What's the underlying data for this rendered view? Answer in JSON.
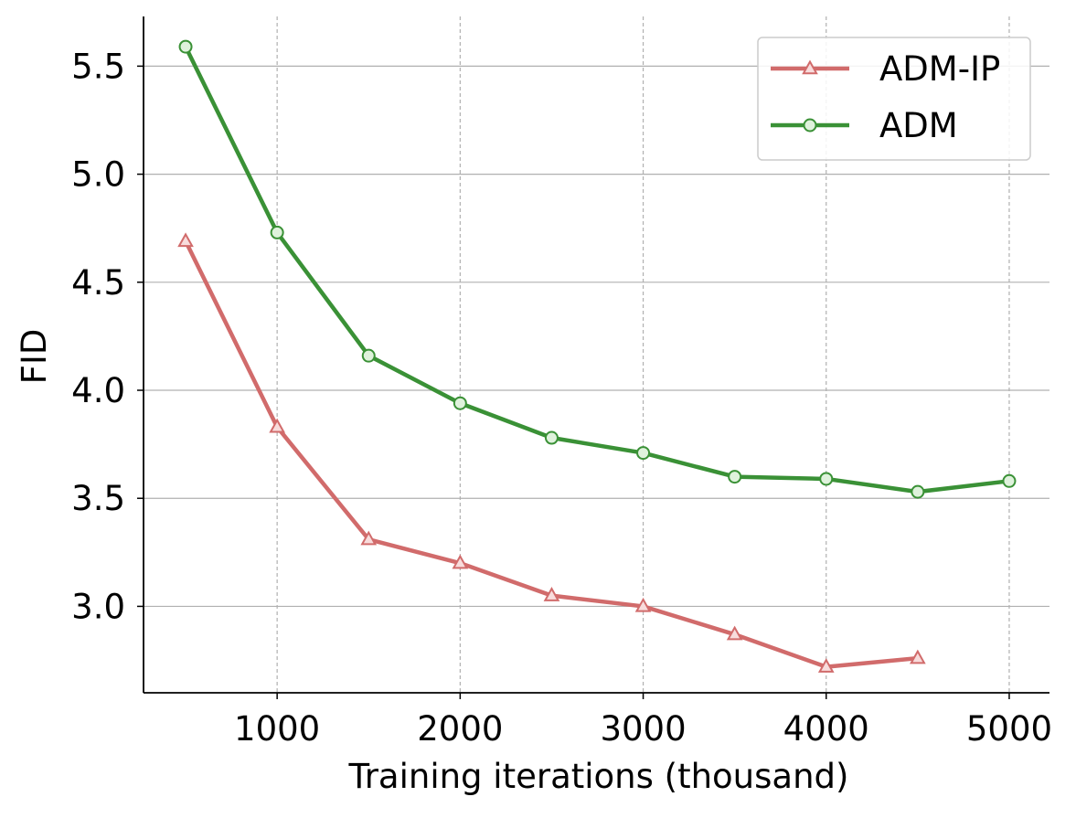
{
  "chart_data": {
    "type": "line",
    "title": "",
    "xlabel": "Training iterations (thousand)",
    "ylabel": "FID",
    "xlim": [
      270,
      5220
    ],
    "ylim": [
      2.6,
      5.73
    ],
    "x_ticks": [
      1000,
      2000,
      3000,
      4000,
      5000
    ],
    "x_tick_labels": [
      "1000",
      "2000",
      "3000",
      "4000",
      "5000"
    ],
    "y_ticks": [
      3.0,
      3.5,
      4.0,
      4.5,
      5.0,
      5.5
    ],
    "y_tick_labels": [
      "3.0",
      "3.5",
      "4.0",
      "4.5",
      "5.0",
      "5.5"
    ],
    "grid": {
      "x": "dashed",
      "y": "solid"
    },
    "legend_position": "top-right",
    "series": [
      {
        "name": "ADM-IP",
        "color": "#d16b6b",
        "marker": "triangle",
        "x": [
          500,
          1000,
          1500,
          2000,
          2500,
          3000,
          3500,
          4000,
          4500
        ],
        "values": [
          4.69,
          3.83,
          3.31,
          3.2,
          3.05,
          3.0,
          2.87,
          2.72,
          2.76
        ]
      },
      {
        "name": "ADM",
        "color": "#3a9136",
        "marker": "circle",
        "x": [
          500,
          1000,
          1500,
          2000,
          2500,
          3000,
          3500,
          4000,
          4500,
          5000
        ],
        "values": [
          5.59,
          4.73,
          4.16,
          3.94,
          3.78,
          3.71,
          3.6,
          3.59,
          3.53,
          3.58
        ]
      }
    ]
  }
}
